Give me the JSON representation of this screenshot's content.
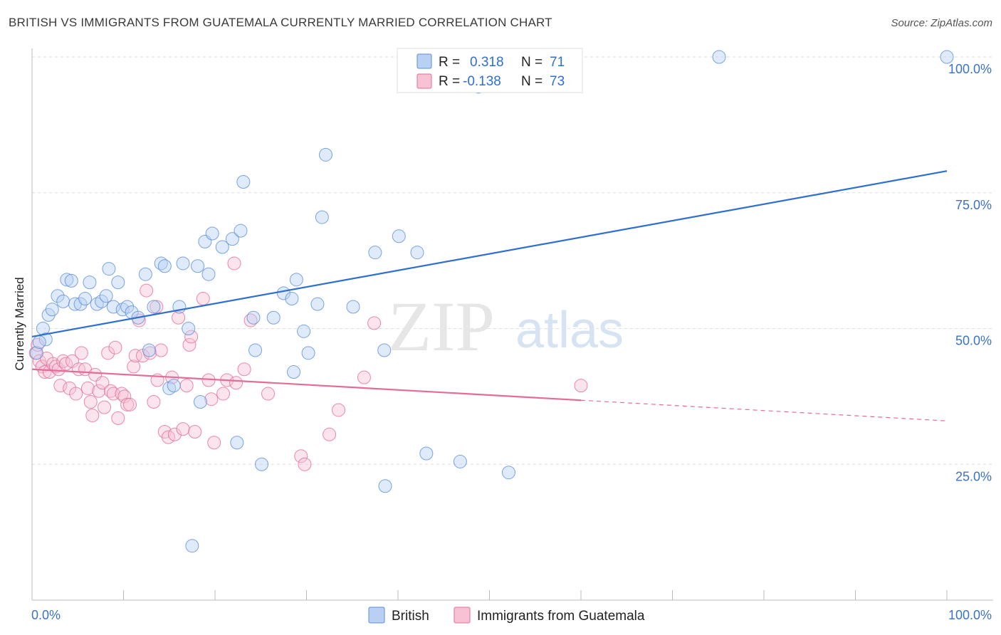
{
  "title": "BRITISH VS IMMIGRANTS FROM GUATEMALA CURRENTLY MARRIED CORRELATION CHART",
  "source": "Source: ZipAtlas.com",
  "watermark": {
    "zip": "ZIP",
    "atlas": "atlas"
  },
  "chart_data": {
    "type": "scatter",
    "xlabel": "",
    "ylabel": "Currently Married",
    "xlim": [
      0,
      100
    ],
    "ylim": [
      0,
      100
    ],
    "x_tick_labels": [
      "0.0%",
      "100.0%"
    ],
    "y_tick_labels": [
      "100.0%",
      "75.0%",
      "50.0%",
      "25.0%"
    ],
    "y_ticks": [
      100,
      75,
      50,
      25
    ],
    "grid": true,
    "legend_position": "top-center",
    "colors": {
      "british": "#5b8fd8",
      "british_fill": "#b9d0f3",
      "guatemala": "#e46d98",
      "guatemala_fill": "#f7c3d4"
    },
    "stats": [
      {
        "r_label": "R =",
        "r_value": "0.318",
        "n_label": "N =",
        "n_value": "71"
      },
      {
        "r_label": "R =",
        "r_value": "-0.138",
        "n_label": "N =",
        "n_value": "73"
      }
    ],
    "series": [
      {
        "name": "British",
        "trend": {
          "x0": 0,
          "y0": 48.5,
          "x1": 100,
          "y1": 79.0
        },
        "points": [
          [
            0.5,
            45.5
          ],
          [
            1.2,
            50.0
          ],
          [
            1.5,
            48.0
          ],
          [
            1.8,
            52.5
          ],
          [
            2.2,
            53.5
          ],
          [
            2.8,
            56.0
          ],
          [
            3.4,
            55.0
          ],
          [
            3.8,
            59.0
          ],
          [
            4.3,
            58.8
          ],
          [
            4.7,
            54.5
          ],
          [
            5.3,
            54.5
          ],
          [
            5.8,
            55.5
          ],
          [
            6.3,
            58.5
          ],
          [
            7.1,
            54.5
          ],
          [
            7.6,
            55.0
          ],
          [
            8.1,
            56.0
          ],
          [
            8.4,
            61.0
          ],
          [
            8.9,
            54.0
          ],
          [
            9.4,
            58.5
          ],
          [
            9.9,
            53.5
          ],
          [
            10.4,
            54.0
          ],
          [
            10.9,
            53.0
          ],
          [
            11.6,
            52.0
          ],
          [
            12.4,
            60.0
          ],
          [
            12.8,
            46.0
          ],
          [
            13.3,
            54.0
          ],
          [
            14.1,
            62.0
          ],
          [
            14.5,
            61.5
          ],
          [
            15.0,
            39.0
          ],
          [
            15.5,
            39.5
          ],
          [
            16.1,
            54.0
          ],
          [
            16.5,
            62.0
          ],
          [
            17.1,
            50.0
          ],
          [
            17.5,
            10.0
          ],
          [
            18.1,
            61.5
          ],
          [
            18.4,
            36.5
          ],
          [
            18.9,
            66.0
          ],
          [
            19.3,
            60.0
          ],
          [
            19.7,
            67.5
          ],
          [
            20.8,
            65.0
          ],
          [
            21.9,
            66.5
          ],
          [
            22.4,
            29.0
          ],
          [
            22.8,
            68.0
          ],
          [
            23.1,
            77.0
          ],
          [
            24.2,
            52.0
          ],
          [
            24.4,
            46.0
          ],
          [
            25.1,
            25.0
          ],
          [
            26.4,
            52.0
          ],
          [
            27.5,
            56.5
          ],
          [
            28.4,
            55.5
          ],
          [
            28.6,
            42.0
          ],
          [
            28.9,
            59.0
          ],
          [
            29.7,
            49.5
          ],
          [
            30.2,
            45.5
          ],
          [
            31.2,
            54.5
          ],
          [
            31.7,
            70.5
          ],
          [
            32.1,
            82.0
          ],
          [
            35.1,
            54.0
          ],
          [
            37.5,
            64.0
          ],
          [
            38.5,
            46.0
          ],
          [
            38.6,
            21.0
          ],
          [
            40.1,
            67.0
          ],
          [
            42.1,
            64.0
          ],
          [
            43.1,
            27.0
          ],
          [
            46.8,
            25.5
          ],
          [
            48.8,
            94.5
          ],
          [
            49.1,
            100.0
          ],
          [
            52.1,
            23.5
          ],
          [
            75.1,
            100.0
          ],
          [
            100.0,
            100.0
          ],
          [
            0.8,
            47.5
          ]
        ]
      },
      {
        "name": "Immigrants from Guatemala",
        "trend": {
          "x0": 0,
          "y0": 42.5,
          "x1": 60,
          "y1": 36.8,
          "x2": 100,
          "y2": 33.0
        },
        "points": [
          [
            0.4,
            45.5
          ],
          [
            0.6,
            47.0
          ],
          [
            0.8,
            44.0
          ],
          [
            1.1,
            43.0
          ],
          [
            1.4,
            42.0
          ],
          [
            1.6,
            44.5
          ],
          [
            1.9,
            42.0
          ],
          [
            2.3,
            43.5
          ],
          [
            2.6,
            43.0
          ],
          [
            2.9,
            42.5
          ],
          [
            3.1,
            39.5
          ],
          [
            3.4,
            44.0
          ],
          [
            3.7,
            43.5
          ],
          [
            4.1,
            39.0
          ],
          [
            4.4,
            44.0
          ],
          [
            4.8,
            38.0
          ],
          [
            5.1,
            42.5
          ],
          [
            5.4,
            45.5
          ],
          [
            5.8,
            42.5
          ],
          [
            6.1,
            39.0
          ],
          [
            6.4,
            36.5
          ],
          [
            6.6,
            34.0
          ],
          [
            6.9,
            41.5
          ],
          [
            7.3,
            38.5
          ],
          [
            7.7,
            40.0
          ],
          [
            7.9,
            35.5
          ],
          [
            8.3,
            45.5
          ],
          [
            8.6,
            38.5
          ],
          [
            8.9,
            38.0
          ],
          [
            9.1,
            46.5
          ],
          [
            9.4,
            33.5
          ],
          [
            9.8,
            38.0
          ],
          [
            10.1,
            37.5
          ],
          [
            10.4,
            36.0
          ],
          [
            10.7,
            36.0
          ],
          [
            11.1,
            43.0
          ],
          [
            11.3,
            45.0
          ],
          [
            11.7,
            51.5
          ],
          [
            12.1,
            45.0
          ],
          [
            12.5,
            57.0
          ],
          [
            12.9,
            45.5
          ],
          [
            13.3,
            36.5
          ],
          [
            13.7,
            40.5
          ],
          [
            14.1,
            46.0
          ],
          [
            14.5,
            31.0
          ],
          [
            14.9,
            30.0
          ],
          [
            15.3,
            41.0
          ],
          [
            15.6,
            30.5
          ],
          [
            16.0,
            52.0
          ],
          [
            16.5,
            31.5
          ],
          [
            16.9,
            39.5
          ],
          [
            17.2,
            47.0
          ],
          [
            17.4,
            48.5
          ],
          [
            17.8,
            31.0
          ],
          [
            18.7,
            55.5
          ],
          [
            19.3,
            40.5
          ],
          [
            19.6,
            37.0
          ],
          [
            19.9,
            29.0
          ],
          [
            20.9,
            38.0
          ],
          [
            21.3,
            40.5
          ],
          [
            22.1,
            62.0
          ],
          [
            22.3,
            40.0
          ],
          [
            23.2,
            42.5
          ],
          [
            23.9,
            51.5
          ],
          [
            25.8,
            38.0
          ],
          [
            29.4,
            26.5
          ],
          [
            29.8,
            25.0
          ],
          [
            32.5,
            30.5
          ],
          [
            33.5,
            35.0
          ],
          [
            36.3,
            41.0
          ],
          [
            37.4,
            51.0
          ],
          [
            60.0,
            39.5
          ],
          [
            13.6,
            54.0
          ]
        ]
      }
    ]
  },
  "bottom_legend": [
    {
      "label": "British",
      "color": "#b9d0f3",
      "border": "#5b8fd8"
    },
    {
      "label": "Immigrants from Guatemala",
      "color": "#f7c3d4",
      "border": "#e46d98"
    }
  ]
}
